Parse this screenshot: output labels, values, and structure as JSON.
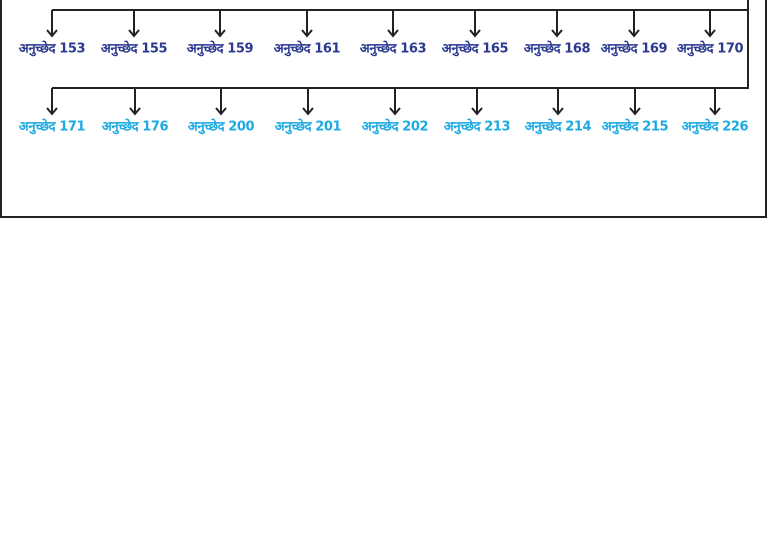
{
  "rows": [
    {
      "labels": [
        "अनुच्छेद 153",
        "अनुच्छेद 155",
        "अनुच्छेद 159",
        "अनुच्छेद 161",
        "अनुच्छेद 163",
        "अनुच्छेद 165",
        "अनुच्छेद 168",
        "अनुच्छेद 169",
        "अनुच्छेद 170"
      ]
    },
    {
      "labels": [
        "अनुच्छेद 171",
        "अनुच्छेद 176",
        "अनुच्छेद 200",
        "अनुच्छेद 201",
        "अनुच्छेद 202",
        "अनुच्छेद 213",
        "अनुच्छेद 214",
        "अनुच्छेद 215",
        "अनुच्छेद 226"
      ]
    }
  ]
}
